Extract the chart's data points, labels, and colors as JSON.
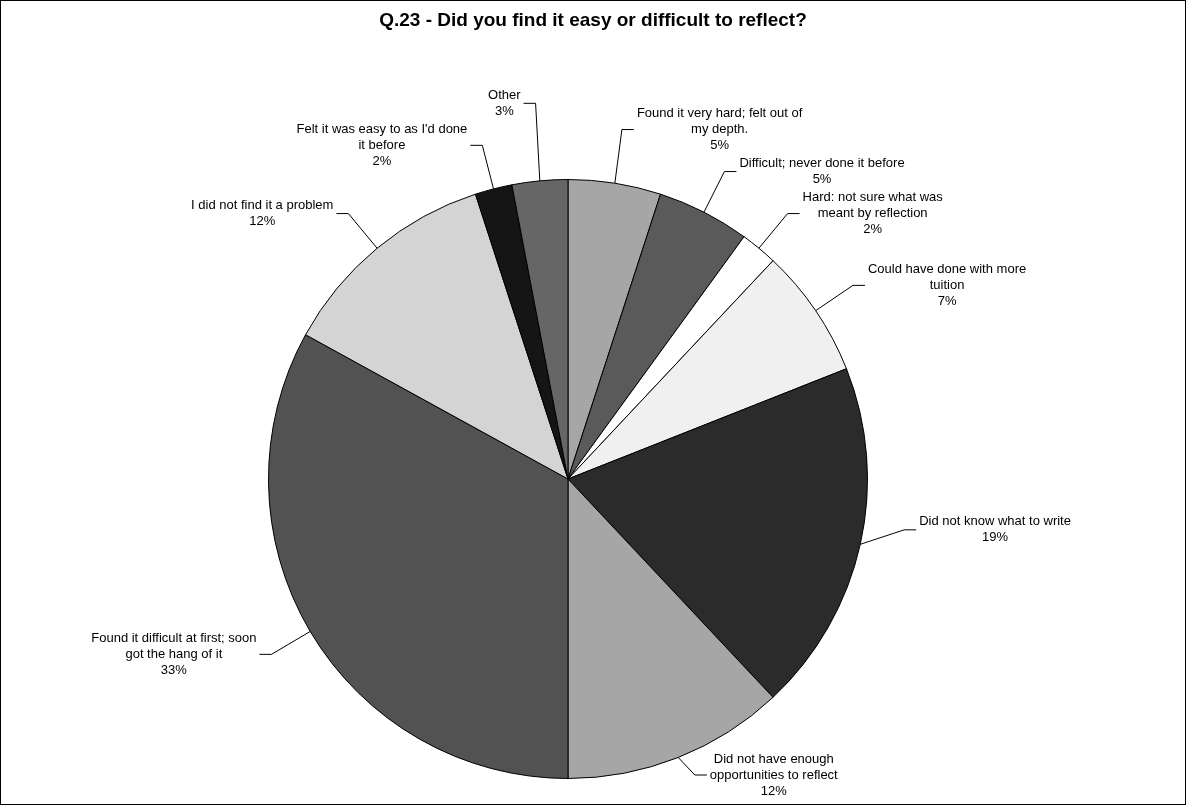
{
  "chart_data": {
    "type": "pie",
    "title": "Q.23 - Did you find it easy or difficult to reflect?",
    "categories": [
      "Found it very hard; felt out of my depth.",
      "Difficult; never done it before",
      "Hard: not sure what was meant by reflection",
      "Could have done with more tuition",
      "Did not know what to write",
      "Did not have enough opportunities to reflect",
      "Found it difficult at first; soon got the hang of it",
      "I did not find it a problem",
      "Felt it was easy to as I'd done it before",
      "Other"
    ],
    "values": [
      5,
      5,
      2,
      7,
      19,
      12,
      33,
      12,
      2,
      3
    ],
    "value_labels": [
      "5%",
      "5%",
      "2%",
      "7%",
      "19%",
      "12%",
      "33%",
      "12%",
      "2%",
      "3%"
    ],
    "colors": [
      "#a6a6a6",
      "#5a5a5a",
      "#ffffff",
      "#f0f0f0",
      "#2b2b2b",
      "#a6a6a6",
      "#525252",
      "#d4d4d4",
      "#151515",
      "#666666"
    ],
    "legend": false
  }
}
